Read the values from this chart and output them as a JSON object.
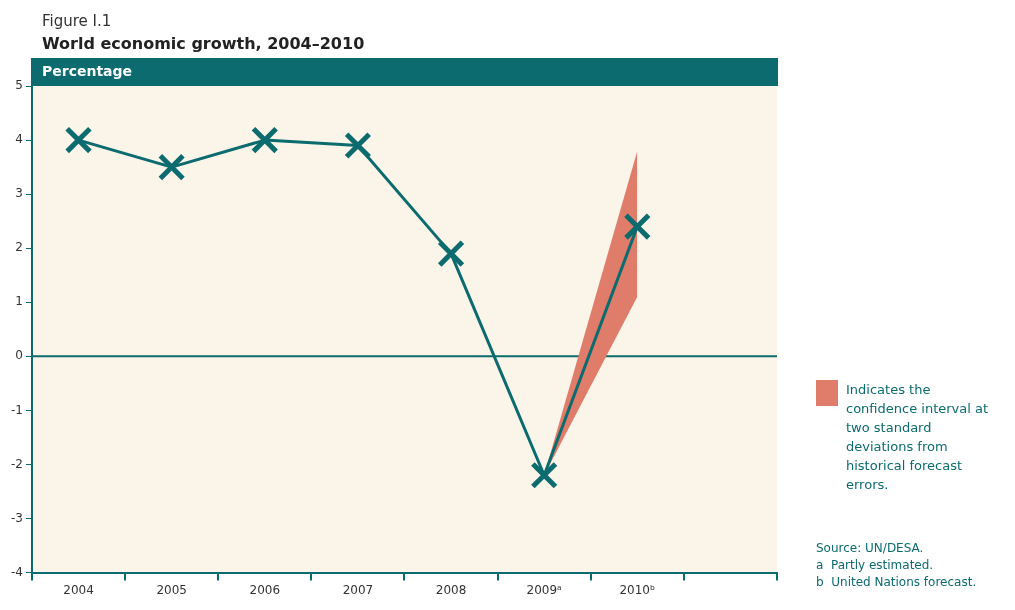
{
  "chart_data": {
    "type": "line",
    "title": "World economic growth, 2004–2010",
    "ylabel": "Percentage",
    "categories": [
      "2004",
      "2005",
      "2006",
      "2007",
      "2008",
      "2009ᵃ",
      "2010ᵇ",
      null
    ],
    "series": [
      {
        "color": "#0b6b6e",
        "values": [
          4.0,
          3.5,
          4.0,
          3.9,
          1.9,
          -2.2,
          2.4,
          null
        ],
        "lower": [
          null,
          null,
          null,
          null,
          null,
          -2.2,
          1.1,
          null
        ],
        "upper": [
          null,
          null,
          null,
          null,
          null,
          -2.2,
          3.8,
          null
        ]
      }
    ],
    "ylim": [
      -4,
      5
    ],
    "yticks": [
      -4,
      -3,
      -2,
      -1,
      0,
      1,
      2,
      3,
      4,
      5
    ],
    "grid": false,
    "marker": "cross",
    "ref_lines": [
      {
        "axis": "y",
        "value": 0,
        "color": "#0b6b6e"
      }
    ],
    "annotations": [
      "Figure I.1",
      "Indicates the confidence interval at two standard deviations from historical forecast errors.",
      "Source: UN/DESA.",
      "a  Partly estimated.",
      "b  United Nations forecast."
    ]
  }
}
